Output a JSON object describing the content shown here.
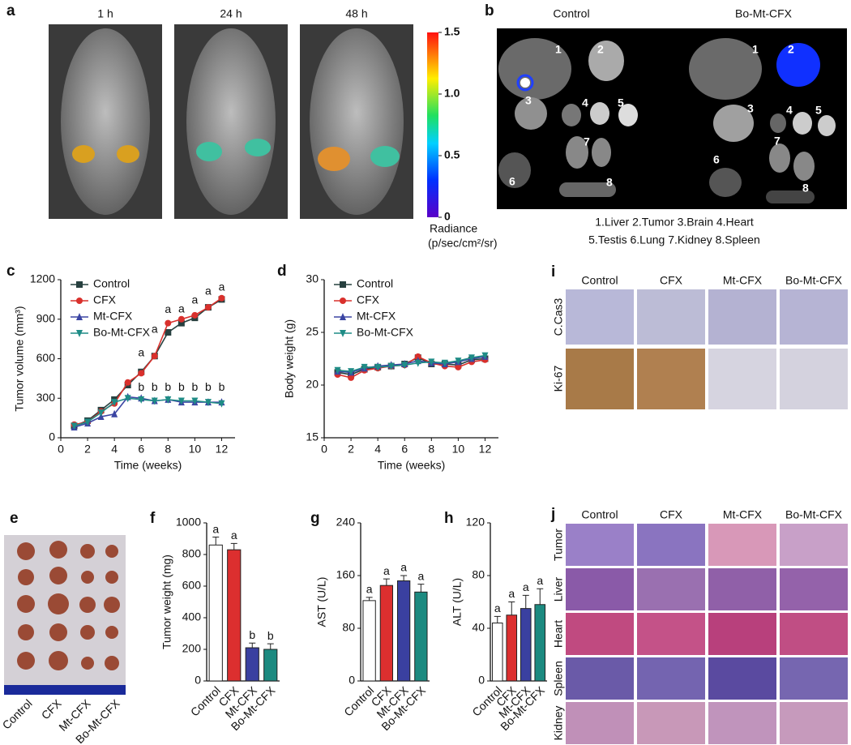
{
  "figure": {
    "panel_a": {
      "label": "a",
      "times": [
        "1 h",
        "24 h",
        "48 h"
      ],
      "colorbar": {
        "ticks": [
          {
            "value": 1.5,
            "label": "1.5"
          },
          {
            "value": 1,
            "label": "1.0"
          },
          {
            "value": 0.5,
            "label": "0.5"
          },
          0
        ],
        "title": "Radiance",
        "unit": "(p/sec/cm²/sr)"
      }
    },
    "panel_b": {
      "label": "b",
      "groups": [
        "Control",
        "Bo-Mt-CFX"
      ],
      "organ_numbers": [
        "1",
        "2",
        "3",
        "4",
        "5",
        "6",
        "7",
        "8"
      ],
      "legend": [
        "1.Liver 2.Tumor 3.Brain 4.Heart",
        "5.Testis 6.Lung 7.Kidney 8.Spleen"
      ]
    },
    "panel_e": {
      "label": "e",
      "groups": [
        "Control",
        "CFX",
        "Mt-CFX",
        "Bo-Mt-CFX"
      ]
    },
    "panel_i": {
      "label": "i",
      "columns": [
        "Control",
        "CFX",
        "Mt-CFX",
        "Bo-Mt-CFX"
      ],
      "rows": [
        "C.Cas3",
        "Ki-67"
      ]
    },
    "panel_j": {
      "label": "j",
      "columns": [
        "Control",
        "CFX",
        "Mt-CFX",
        "Bo-Mt-CFX"
      ],
      "rows": [
        "Tumor",
        "Liver",
        "Heart",
        "Spleen",
        "Kidney"
      ]
    }
  },
  "chart_data": [
    {
      "type": "line",
      "panel_label": "c",
      "xlabel": "Time (weeks)",
      "ylabel": "Tumor volume (mm³)",
      "x": [
        1,
        2,
        3,
        4,
        5,
        6,
        7,
        8,
        9,
        10,
        11,
        12
      ],
      "xlim": [
        0,
        13
      ],
      "xticks": [
        0,
        2,
        4,
        6,
        8,
        10,
        12
      ],
      "ylim": [
        0,
        1200
      ],
      "yticks": [
        0,
        300,
        600,
        900,
        1200
      ],
      "legend": "upper left",
      "series": [
        {
          "name": "Control",
          "color": "#27403f",
          "marker": "square",
          "values": [
            90,
            130,
            210,
            290,
            400,
            500,
            620,
            800,
            870,
            910,
            990,
            1050
          ]
        },
        {
          "name": "CFX",
          "color": "#d9302c",
          "marker": "circle",
          "values": [
            100,
            120,
            200,
            260,
            420,
            490,
            620,
            870,
            900,
            930,
            990,
            1060
          ]
        },
        {
          "name": "Mt-CFX",
          "color": "#3b45a3",
          "marker": "triangle-up",
          "values": [
            80,
            110,
            160,
            180,
            310,
            300,
            280,
            290,
            270,
            270,
            270,
            270
          ]
        },
        {
          "name": "Bo-Mt-CFX",
          "color": "#1f8c86",
          "marker": "triangle-down",
          "values": [
            90,
            120,
            190,
            270,
            300,
            290,
            280,
            290,
            280,
            280,
            270,
            260
          ]
        }
      ],
      "annotations": [
        {
          "text": "a",
          "x": 6,
          "y": 640
        },
        {
          "text": "a",
          "x": 7,
          "y": 820
        },
        {
          "text": "a",
          "x": 8,
          "y": 970
        },
        {
          "text": "a",
          "x": 9,
          "y": 975
        },
        {
          "text": "a",
          "x": 10,
          "y": 1040
        },
        {
          "text": "a",
          "x": 11,
          "y": 1110
        },
        {
          "text": "a",
          "x": 12,
          "y": 1140
        },
        {
          "text": "b",
          "x": 6,
          "y": 380
        },
        {
          "text": "b",
          "x": 7,
          "y": 380
        },
        {
          "text": "b",
          "x": 8,
          "y": 380
        },
        {
          "text": "b",
          "x": 9,
          "y": 380
        },
        {
          "text": "b",
          "x": 10,
          "y": 380
        },
        {
          "text": "b",
          "x": 11,
          "y": 380
        },
        {
          "text": "b",
          "x": 12,
          "y": 380
        }
      ]
    },
    {
      "type": "line",
      "panel_label": "d",
      "xlabel": "Time (weeks)",
      "ylabel": "Body weight (g)",
      "x": [
        1,
        2,
        3,
        4,
        5,
        6,
        7,
        8,
        9,
        10,
        11,
        12
      ],
      "xlim": [
        0,
        13
      ],
      "xticks": [
        0,
        2,
        4,
        6,
        8,
        10,
        12
      ],
      "ylim": [
        15,
        30
      ],
      "yticks": [
        15,
        20,
        25,
        30
      ],
      "legend": "upper left",
      "series": [
        {
          "name": "Control",
          "color": "#27403f",
          "marker": "square",
          "values": [
            21.2,
            21.0,
            21.5,
            21.7,
            21.8,
            22.0,
            22.6,
            22.0,
            22.0,
            21.9,
            22.4,
            22.5
          ]
        },
        {
          "name": "CFX",
          "color": "#d9302c",
          "marker": "circle",
          "values": [
            21.0,
            20.7,
            21.4,
            21.6,
            21.8,
            21.9,
            22.7,
            22.1,
            21.8,
            21.7,
            22.2,
            22.4
          ]
        },
        {
          "name": "Mt-CFX",
          "color": "#3b45a3",
          "marker": "triangle-up",
          "values": [
            21.3,
            21.2,
            21.6,
            21.8,
            21.9,
            22.0,
            22.3,
            22.1,
            22.0,
            22.2,
            22.5,
            22.7
          ]
        },
        {
          "name": "Bo-Mt-CFX",
          "color": "#1f8c86",
          "marker": "triangle-down",
          "values": [
            21.4,
            21.3,
            21.7,
            21.7,
            21.8,
            21.9,
            22.1,
            22.2,
            22.1,
            22.3,
            22.6,
            22.8
          ]
        }
      ]
    },
    {
      "type": "bar",
      "panel_label": "f",
      "ylabel": "Tumor weight (mg)",
      "categories": [
        "Control",
        "CFX",
        "Mt-CFX",
        "Bo-Mt-CFX"
      ],
      "values": [
        860,
        830,
        210,
        200
      ],
      "errors": [
        50,
        40,
        30,
        35
      ],
      "colors": [
        "#ffffff",
        "#dc2f2f",
        "#3a40a0",
        "#1c8a80"
      ],
      "letters": [
        "a",
        "a",
        "b",
        "b"
      ],
      "ylim": [
        0,
        1000
      ],
      "yticks": [
        0,
        200,
        400,
        600,
        800,
        1000
      ]
    },
    {
      "type": "bar",
      "panel_label": "g",
      "ylabel": "AST (U/L)",
      "categories": [
        "Control",
        "CFX",
        "Mt-CFX",
        "Bo-Mt-CFX"
      ],
      "values": [
        122,
        145,
        152,
        135
      ],
      "errors": [
        5,
        10,
        8,
        12
      ],
      "colors": [
        "#ffffff",
        "#dc2f2f",
        "#3a40a0",
        "#1c8a80"
      ],
      "letters": [
        "a",
        "a",
        "a",
        "a"
      ],
      "ylim": [
        0,
        240
      ],
      "yticks": [
        0,
        80,
        160,
        240
      ]
    },
    {
      "type": "bar",
      "panel_label": "h",
      "ylabel": "ALT (U/L)",
      "categories": [
        "Control",
        "CFX",
        "Mt-CFX",
        "Bo-Mt-CFX"
      ],
      "values": [
        44,
        50,
        55,
        58
      ],
      "errors": [
        5,
        10,
        10,
        12
      ],
      "colors": [
        "#ffffff",
        "#dc2f2f",
        "#3a40a0",
        "#1c8a80"
      ],
      "letters": [
        "a",
        "a",
        "a",
        "a"
      ],
      "ylim": [
        0,
        120
      ],
      "yticks": [
        0,
        40,
        80,
        120
      ]
    }
  ]
}
